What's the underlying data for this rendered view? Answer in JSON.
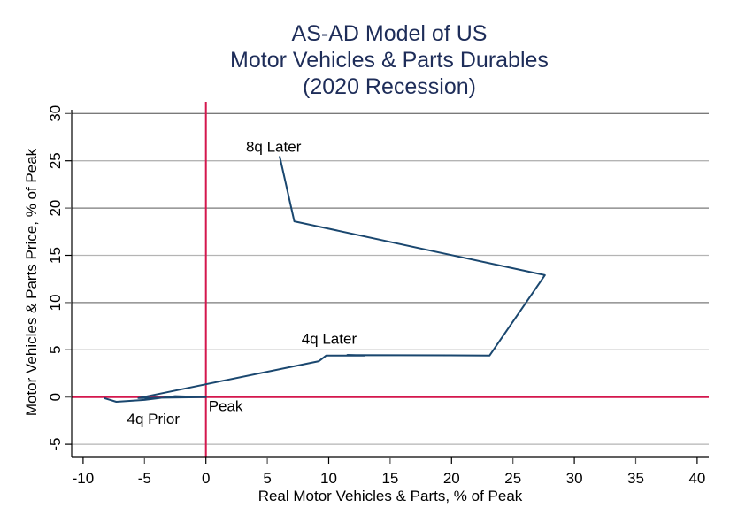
{
  "chart_data": {
    "type": "line",
    "title": [
      "AS-AD Model of US",
      "Motor Vehicles & Parts Durables",
      "(2020 Recession)"
    ],
    "xlabel": "Real Motor Vehicles & Parts, % of Peak",
    "ylabel": "Motor Vehicles & Parts Price, % of Peak",
    "xlim": [
      -11,
      41
    ],
    "ylim": [
      -6.5,
      31
    ],
    "xticks": [
      -10,
      -5,
      0,
      5,
      10,
      15,
      20,
      25,
      30,
      35,
      40
    ],
    "yticks": [
      -5,
      0,
      5,
      10,
      15,
      20,
      25,
      30
    ],
    "xtick_labels": [
      "-10",
      "-5",
      "0",
      "5",
      "10",
      "15",
      "20",
      "25",
      "30",
      "35",
      "40"
    ],
    "ytick_labels": [
      "-5",
      "0",
      "5",
      "10",
      "15",
      "20",
      "25",
      "30"
    ],
    "grid": "horizontal",
    "reference_lines": {
      "x": 0,
      "y": 0,
      "color": "#d4174d"
    },
    "series": [
      {
        "name": "Motor Vehicles & Parts",
        "color": "#1a476f",
        "x": [
          -8.3,
          -7.3,
          -5.0,
          -2.5,
          0.0,
          -5.5,
          9.2,
          9.8,
          12.9,
          11.5,
          23.1,
          27.6,
          7.2,
          6.0
        ],
        "y": [
          -0.1,
          -0.5,
          -0.3,
          0.1,
          0.0,
          -0.1,
          3.8,
          4.4,
          4.4,
          4.45,
          4.4,
          12.9,
          18.6,
          25.5
        ]
      }
    ],
    "annotations": [
      {
        "text": "8q Later",
        "x": 6.0,
        "y": 25.5
      },
      {
        "text": "4q Later",
        "x": 9.8,
        "y": 4.4
      },
      {
        "text": "Peak",
        "x": 0.0,
        "y": 0.0
      },
      {
        "text": "4q Prior",
        "x": -8.3,
        "y": -0.1
      }
    ]
  }
}
